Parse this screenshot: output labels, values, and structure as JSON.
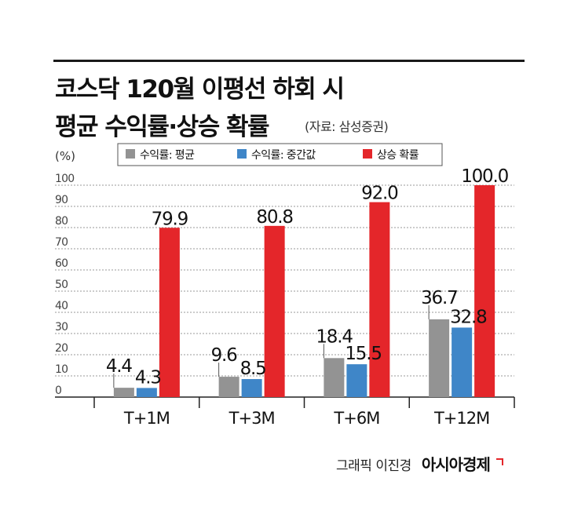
{
  "title": [
    "코스닥 120월 이평선 하회 시",
    "평균 수익률·상승 확률"
  ],
  "source": "(자료: 삼성증권)",
  "credit": {
    "text": "그래픽 이진경",
    "brand": "아시아경제"
  },
  "chart_data": {
    "type": "bar",
    "unit": "(%)",
    "categories": [
      "T+1M",
      "T+3M",
      "T+6M",
      "T+12M"
    ],
    "series": [
      {
        "name": "수익률: 평균",
        "color": "#939393",
        "values": [
          4.4,
          9.6,
          18.4,
          36.7
        ],
        "labels": [
          "4.4",
          "9.6",
          "18.4",
          "36.7"
        ]
      },
      {
        "name": "수익률: 중간값",
        "color": "#3f86c8",
        "values": [
          4.3,
          8.5,
          15.5,
          32.8
        ],
        "labels": [
          "4.3",
          "8.5",
          "15.5",
          "32.8"
        ]
      },
      {
        "name": "상승 확률",
        "color": "#e4262a",
        "values": [
          79.9,
          80.8,
          92.0,
          100.0
        ],
        "labels": [
          "79.9",
          "80.8",
          "92.0",
          "100.0"
        ]
      }
    ],
    "yticks": [
      "0",
      "10",
      "20",
      "30",
      "40",
      "50",
      "60",
      "70",
      "80",
      "90",
      "100"
    ],
    "ylim": [
      0,
      100
    ],
    "grid": true,
    "legend": "top"
  }
}
